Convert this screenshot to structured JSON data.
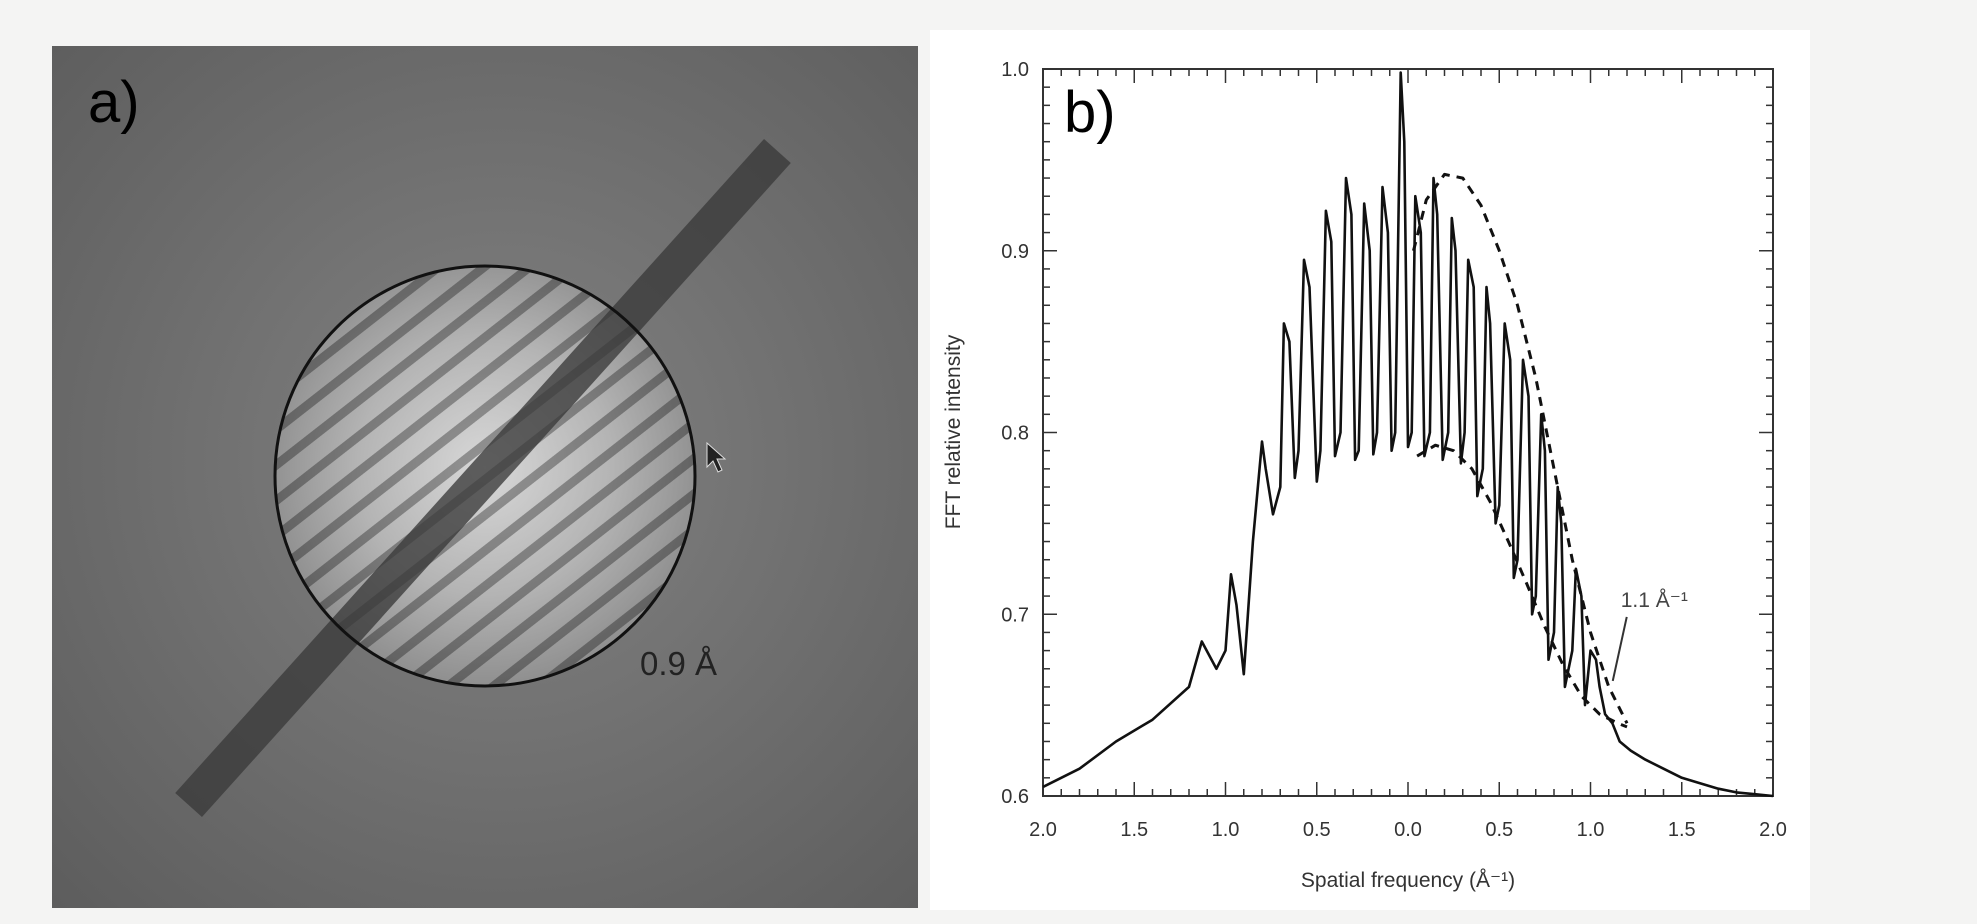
{
  "panel_a": {
    "label": "a)",
    "circle_label": "0.9 Å"
  },
  "chart_data": {
    "type": "line",
    "panel_label": "b)",
    "xlabel": "Spatial frequency (Å⁻¹)",
    "ylabel": "FFT relative intensity",
    "x_tick_labels": [
      "2.0",
      "1.5",
      "1.0",
      "0.5",
      "0.0",
      "0.5",
      "1.0",
      "1.5",
      "2.0"
    ],
    "y_tick_labels": [
      "0.6",
      "0.7",
      "0.8",
      "0.9",
      "1.0"
    ],
    "xlim": [
      -2.0,
      2.0
    ],
    "ylim": [
      0.6,
      1.0
    ],
    "grid": false,
    "annotations": [
      {
        "text": "1.1 Å⁻¹",
        "x": 1.1,
        "y": 0.66
      }
    ],
    "series": [
      {
        "style": "solid",
        "x": [
          -2.0,
          -1.8,
          -1.6,
          -1.4,
          -1.2,
          -1.13,
          -1.05,
          -1.0,
          -0.97,
          -0.94,
          -0.9,
          -0.85,
          -0.8,
          -0.78,
          -0.74,
          -0.7,
          -0.68,
          -0.65,
          -0.62,
          -0.6,
          -0.57,
          -0.54,
          -0.5,
          -0.48,
          -0.45,
          -0.42,
          -0.4,
          -0.37,
          -0.34,
          -0.31,
          -0.29,
          -0.27,
          -0.24,
          -0.21,
          -0.19,
          -0.17,
          -0.14,
          -0.11,
          -0.09,
          -0.07,
          -0.04,
          -0.02,
          0.0,
          0.02,
          0.04,
          0.07,
          0.09,
          0.12,
          0.14,
          0.16,
          0.19,
          0.22,
          0.24,
          0.26,
          0.29,
          0.31,
          0.33,
          0.36,
          0.38,
          0.41,
          0.43,
          0.45,
          0.48,
          0.5,
          0.53,
          0.56,
          0.58,
          0.6,
          0.63,
          0.66,
          0.68,
          0.7,
          0.73,
          0.75,
          0.77,
          0.8,
          0.82,
          0.84,
          0.86,
          0.9,
          0.92,
          0.95,
          0.97,
          1.0,
          1.03,
          1.05,
          1.08,
          1.12,
          1.16,
          1.22,
          1.3,
          1.4,
          1.5,
          1.6,
          1.7,
          1.8,
          1.9,
          2.0
        ],
        "y": [
          0.605,
          0.615,
          0.63,
          0.642,
          0.66,
          0.685,
          0.67,
          0.68,
          0.722,
          0.705,
          0.667,
          0.74,
          0.795,
          0.78,
          0.755,
          0.77,
          0.86,
          0.85,
          0.775,
          0.79,
          0.895,
          0.88,
          0.773,
          0.79,
          0.922,
          0.905,
          0.787,
          0.8,
          0.94,
          0.92,
          0.785,
          0.79,
          0.926,
          0.9,
          0.788,
          0.8,
          0.935,
          0.91,
          0.79,
          0.8,
          0.998,
          0.96,
          0.792,
          0.8,
          0.93,
          0.91,
          0.787,
          0.8,
          0.94,
          0.92,
          0.785,
          0.8,
          0.918,
          0.9,
          0.783,
          0.8,
          0.895,
          0.88,
          0.765,
          0.78,
          0.88,
          0.86,
          0.75,
          0.76,
          0.86,
          0.84,
          0.72,
          0.73,
          0.84,
          0.82,
          0.7,
          0.71,
          0.81,
          0.79,
          0.675,
          0.69,
          0.77,
          0.75,
          0.66,
          0.68,
          0.725,
          0.71,
          0.65,
          0.68,
          0.675,
          0.66,
          0.645,
          0.64,
          0.63,
          0.625,
          0.62,
          0.615,
          0.61,
          0.607,
          0.604,
          0.602,
          0.601,
          0.6
        ]
      },
      {
        "style": "dashed",
        "name": "upper envelope",
        "x": [
          0.03,
          0.1,
          0.2,
          0.3,
          0.4,
          0.5,
          0.6,
          0.7,
          0.8,
          0.9,
          1.0,
          1.1,
          1.2
        ],
        "y": [
          0.9,
          0.928,
          0.942,
          0.94,
          0.925,
          0.9,
          0.87,
          0.83,
          0.78,
          0.73,
          0.69,
          0.66,
          0.64
        ]
      },
      {
        "style": "dashed",
        "name": "lower envelope",
        "x": [
          0.05,
          0.15,
          0.25,
          0.35,
          0.45,
          0.55,
          0.65,
          0.75,
          0.85,
          0.95,
          1.05,
          1.15,
          1.2
        ],
        "y": [
          0.787,
          0.793,
          0.79,
          0.78,
          0.762,
          0.74,
          0.717,
          0.693,
          0.672,
          0.655,
          0.645,
          0.64,
          0.638
        ]
      }
    ]
  }
}
